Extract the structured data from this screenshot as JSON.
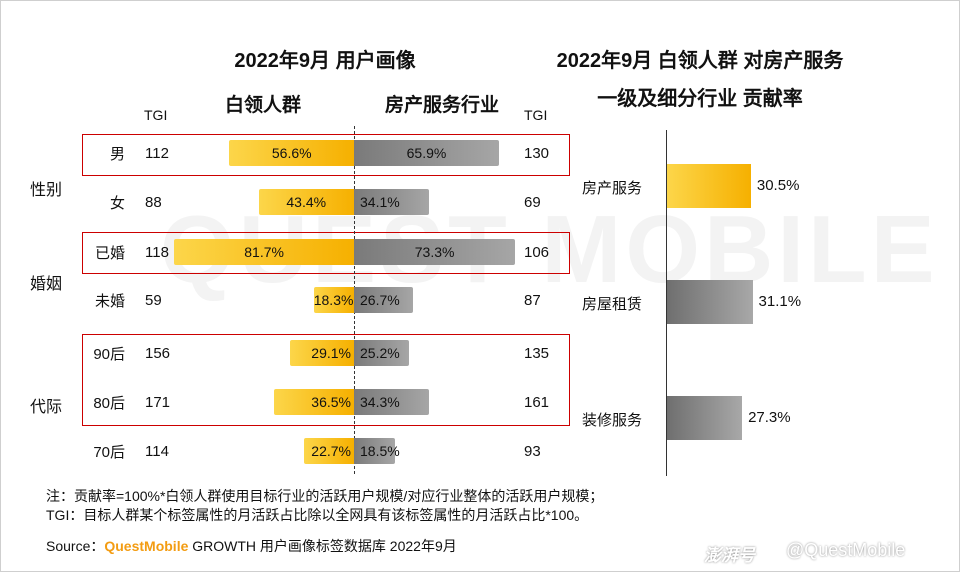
{
  "titles": {
    "left": "2022年9月 用户画像",
    "right_line1": "2022年9月 白领人群 对房产服务",
    "right_line2": "一级及细分行业 贡献率"
  },
  "headers": {
    "left_series": "白领人群",
    "right_series": "房产服务行业",
    "tgi_left": "TGI",
    "tgi_right": "TGI"
  },
  "groups": [
    {
      "label": "性别"
    },
    {
      "label": "婚姻"
    },
    {
      "label": "代际"
    }
  ],
  "watermark_text": "QUEST MOBILE",
  "chart_data": [
    {
      "type": "bar",
      "title": "2022年9月 用户画像",
      "categories": [
        "男",
        "女",
        "已婚",
        "未婚",
        "90后",
        "80后",
        "70后"
      ],
      "groups": [
        "性别",
        "性别",
        "婚姻",
        "婚姻",
        "代际",
        "代际",
        "代际"
      ],
      "highlighted": [
        true,
        false,
        true,
        false,
        true,
        true,
        false
      ],
      "series": [
        {
          "name": "白领人群",
          "color": "#F6B000",
          "values": [
            56.6,
            43.4,
            81.7,
            18.3,
            29.1,
            36.5,
            22.7
          ],
          "labels": [
            "56.6%",
            "43.4%",
            "81.7%",
            "18.3%",
            "29.1%",
            "36.5%",
            "22.7%"
          ],
          "tgi": [
            "112",
            "88",
            "118",
            "59",
            "156",
            "171",
            "114"
          ]
        },
        {
          "name": "房产服务行业",
          "color": "#8C8C8C",
          "values": [
            65.9,
            34.1,
            73.3,
            26.7,
            25.2,
            34.3,
            18.5
          ],
          "labels": [
            "65.9%",
            "34.1%",
            "73.3%",
            "26.7%",
            "25.2%",
            "34.3%",
            "18.5%"
          ],
          "tgi": [
            "130",
            "69",
            "106",
            "87",
            "135",
            "161",
            "93"
          ]
        }
      ]
    },
    {
      "type": "bar",
      "title": "2022年9月 白领人群 对房产服务 一级及细分行业 贡献率",
      "categories": [
        "房产服务",
        "房屋租赁",
        "装修服务"
      ],
      "values": [
        30.5,
        31.1,
        27.3
      ],
      "labels": [
        "30.5%",
        "31.1%",
        "27.3%"
      ],
      "colors": [
        "#F6B000",
        "#8C8C8C",
        "#8C8C8C"
      ]
    }
  ],
  "notes": {
    "line1": "注：贡献率=100%*白领人群使用目标行业的活跃用户规模/对应行业整体的活跃用户规模；",
    "line2": "TGI：目标人群某个标签属性的月活跃占比除以全网具有该标签属性的月活跃占比*100。"
  },
  "source": {
    "prefix": "Source：",
    "brand": "QuestMobile",
    "rest": " GROWTH 用户画像标签数据库 2022年9月"
  },
  "watermark": {
    "left": "澎湃号",
    "right": "@QuestMobile"
  }
}
